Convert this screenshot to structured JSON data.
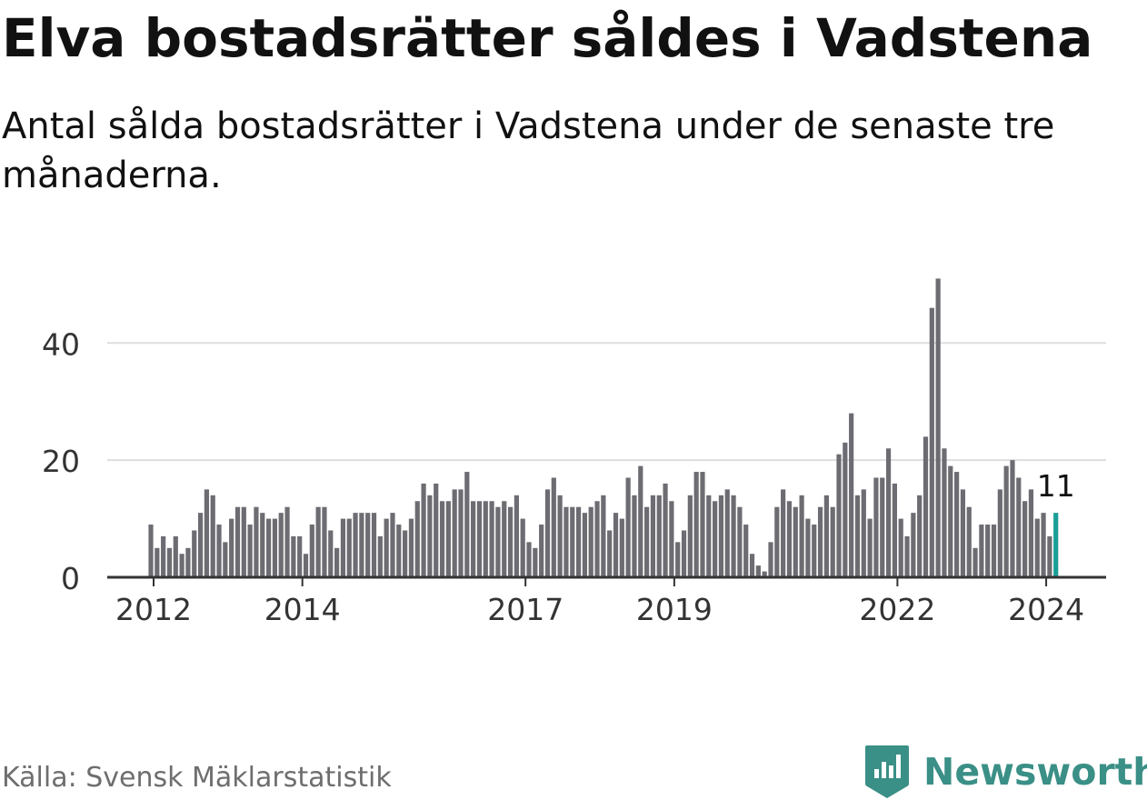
{
  "header": {
    "title": "Elva bostadsrätter såldes i Vadstena",
    "subtitle": "Antal sålda bostadsrätter i Vadstena under de senaste tre månaderna."
  },
  "footer": {
    "source": "Källa: Svensk Mäklarstatistik",
    "brand": "Newsworthy",
    "brand_icon": "newsworthy-logo-icon"
  },
  "colors": {
    "bar": "#6d6c72",
    "highlight": "#1a9e97",
    "grid": "#dddddd",
    "axis": "#333333",
    "brand": "#3a8f86"
  },
  "chart_data": {
    "type": "bar",
    "title": "Elva bostadsrätter såldes i Vadstena",
    "xlabel": "",
    "ylabel": "",
    "ylim": [
      0,
      52
    ],
    "yticks": [
      0,
      20,
      40
    ],
    "grid": true,
    "x_start": "2012-01",
    "x_ticks": [
      {
        "label": "2012",
        "index": 0
      },
      {
        "label": "2014",
        "index": 24
      },
      {
        "label": "2017",
        "index": 60
      },
      {
        "label": "2019",
        "index": 84
      },
      {
        "label": "2022",
        "index": 120
      },
      {
        "label": "2024",
        "index": 144
      }
    ],
    "values": [
      9,
      5,
      7,
      5,
      7,
      4,
      5,
      8,
      11,
      15,
      14,
      9,
      6,
      10,
      12,
      12,
      9,
      12,
      11,
      10,
      10,
      11,
      12,
      7,
      7,
      4,
      9,
      12,
      12,
      8,
      5,
      10,
      10,
      11,
      11,
      11,
      11,
      7,
      10,
      11,
      9,
      8,
      10,
      13,
      16,
      14,
      16,
      13,
      13,
      15,
      15,
      18,
      13,
      13,
      13,
      13,
      12,
      13,
      12,
      14,
      10,
      6,
      5,
      9,
      15,
      17,
      14,
      12,
      12,
      12,
      11,
      12,
      13,
      14,
      8,
      11,
      10,
      17,
      14,
      19,
      12,
      14,
      14,
      16,
      13,
      6,
      8,
      14,
      18,
      18,
      14,
      13,
      14,
      15,
      14,
      12,
      9,
      4,
      2,
      1,
      6,
      12,
      15,
      13,
      12,
      14,
      10,
      9,
      12,
      14,
      12,
      21,
      23,
      28,
      14,
      15,
      10,
      17,
      17,
      22,
      16,
      10,
      7,
      11,
      14,
      24,
      46,
      51,
      22,
      19,
      18,
      15,
      12,
      5,
      9,
      9,
      9,
      15,
      19,
      20,
      17,
      13,
      15,
      10,
      11,
      7,
      11
    ],
    "highlight_index": 146,
    "highlight_label": "11"
  }
}
